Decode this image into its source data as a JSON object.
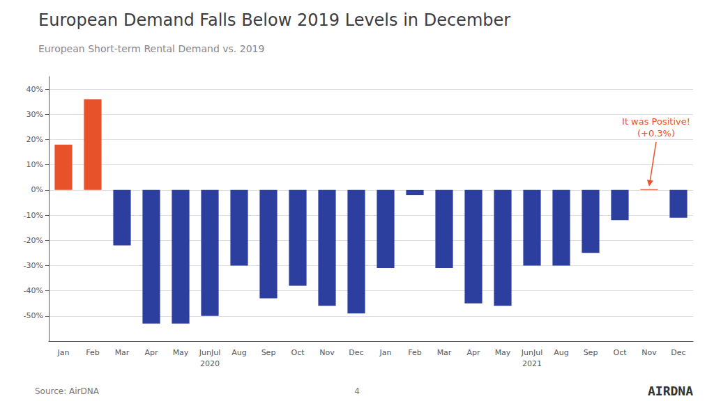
{
  "chart_data": {
    "type": "bar",
    "title": "European Demand Falls Below 2019 Levels in December",
    "subtitle": "European Short-term Rental Demand vs. 2019",
    "categories": [
      "Jan",
      "Feb",
      "Mar",
      "Apr",
      "May",
      "JunJul",
      "Aug",
      "Sep",
      "Oct",
      "Nov",
      "Dec",
      "Jan",
      "Feb",
      "Mar",
      "Apr",
      "May",
      "JunJul",
      "Aug",
      "Sep",
      "Oct",
      "Nov",
      "Dec"
    ],
    "values": [
      18,
      36,
      -22,
      -53,
      -53,
      -50,
      -30,
      -43,
      -38,
      -46,
      -49,
      -31,
      -2,
      -31,
      -45,
      -46,
      -30,
      -30,
      -25,
      -12,
      0.3,
      -11
    ],
    "colors": [
      "#e8522a",
      "#e8522a",
      "#2d3f9e",
      "#2d3f9e",
      "#2d3f9e",
      "#2d3f9e",
      "#2d3f9e",
      "#2d3f9e",
      "#2d3f9e",
      "#2d3f9e",
      "#2d3f9e",
      "#2d3f9e",
      "#2d3f9e",
      "#2d3f9e",
      "#2d3f9e",
      "#2d3f9e",
      "#2d3f9e",
      "#2d3f9e",
      "#2d3f9e",
      "#2d3f9e",
      "#e8522a",
      "#2d3f9e"
    ],
    "ylim": [
      -60,
      45
    ],
    "yticks": [
      {
        "value": -50,
        "label": "-50%"
      },
      {
        "value": -40,
        "label": "-40%"
      },
      {
        "value": -30,
        "label": "-30%"
      },
      {
        "value": -20,
        "label": "-20%"
      },
      {
        "value": -10,
        "label": "-10%"
      },
      {
        "value": 0,
        "label": "0%"
      },
      {
        "value": 10,
        "label": "10%"
      },
      {
        "value": 20,
        "label": "20%"
      },
      {
        "value": 30,
        "label": "30%"
      },
      {
        "value": 40,
        "label": "40%"
      }
    ],
    "grid": true,
    "annotation": {
      "text": "It was Positive!\n(+0.3%)",
      "index": 20
    },
    "year_labels": [
      {
        "text": "2020",
        "index": 5
      },
      {
        "text": "2021",
        "index": 16
      }
    ],
    "source": "Source: AirDNA",
    "page_number": "4",
    "logo": "AIRDNA"
  }
}
